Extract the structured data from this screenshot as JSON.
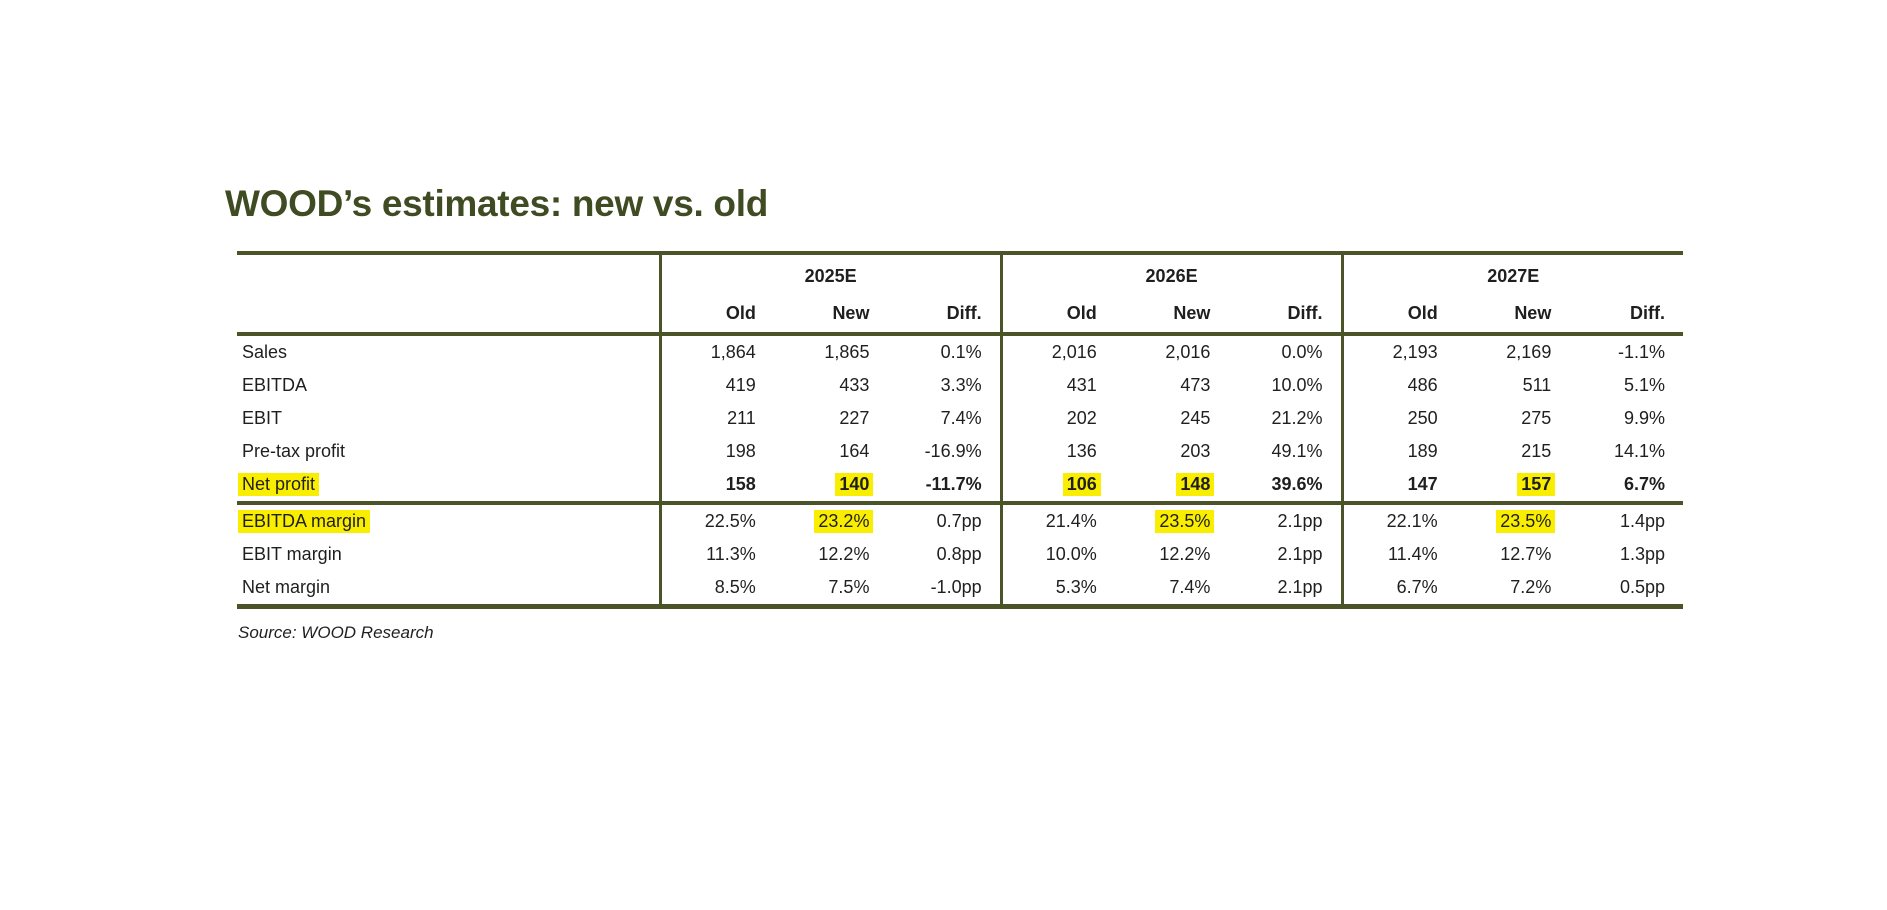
{
  "title": "WOOD’s estimates: new vs. old",
  "source_note": "Source: WOOD Research",
  "colors": {
    "title_green": "#3f4b22",
    "line_green": "#4a5428",
    "highlight_yellow": "#f9ee00",
    "text_dark": "#1f1f1f"
  },
  "table": {
    "year_headers": [
      "2025E",
      "2026E",
      "2027E"
    ],
    "sub_headers": [
      "Old",
      "New",
      "Diff."
    ],
    "rows": [
      {
        "label": {
          "v": "Sales",
          "hl": false
        },
        "bold": false,
        "cells": [
          {
            "v": "1,864",
            "hl": false
          },
          {
            "v": "1,865",
            "hl": false
          },
          {
            "v": "0.1%",
            "hl": false
          },
          {
            "v": "2,016",
            "hl": false
          },
          {
            "v": "2,016",
            "hl": false
          },
          {
            "v": "0.0%",
            "hl": false
          },
          {
            "v": "2,193",
            "hl": false
          },
          {
            "v": "2,169",
            "hl": false
          },
          {
            "v": "-1.1%",
            "hl": false
          }
        ]
      },
      {
        "label": {
          "v": "EBITDA",
          "hl": false
        },
        "bold": false,
        "cells": [
          {
            "v": "419",
            "hl": false
          },
          {
            "v": "433",
            "hl": false
          },
          {
            "v": "3.3%",
            "hl": false
          },
          {
            "v": "431",
            "hl": false
          },
          {
            "v": "473",
            "hl": false
          },
          {
            "v": "10.0%",
            "hl": false
          },
          {
            "v": "486",
            "hl": false
          },
          {
            "v": "511",
            "hl": false
          },
          {
            "v": "5.1%",
            "hl": false
          }
        ]
      },
      {
        "label": {
          "v": "EBIT",
          "hl": false
        },
        "bold": false,
        "cells": [
          {
            "v": "211",
            "hl": false
          },
          {
            "v": "227",
            "hl": false
          },
          {
            "v": "7.4%",
            "hl": false
          },
          {
            "v": "202",
            "hl": false
          },
          {
            "v": "245",
            "hl": false
          },
          {
            "v": "21.2%",
            "hl": false
          },
          {
            "v": "250",
            "hl": false
          },
          {
            "v": "275",
            "hl": false
          },
          {
            "v": "9.9%",
            "hl": false
          }
        ]
      },
      {
        "label": {
          "v": "Pre-tax profit",
          "hl": false
        },
        "bold": false,
        "cells": [
          {
            "v": "198",
            "hl": false
          },
          {
            "v": "164",
            "hl": false
          },
          {
            "v": "-16.9%",
            "hl": false
          },
          {
            "v": "136",
            "hl": false
          },
          {
            "v": "203",
            "hl": false
          },
          {
            "v": "49.1%",
            "hl": false
          },
          {
            "v": "189",
            "hl": false
          },
          {
            "v": "215",
            "hl": false
          },
          {
            "v": "14.1%",
            "hl": false
          }
        ]
      },
      {
        "label": {
          "v": "Net profit",
          "hl": true
        },
        "bold": true,
        "cells": [
          {
            "v": "158",
            "hl": false
          },
          {
            "v": "140",
            "hl": true
          },
          {
            "v": "-11.7%",
            "hl": false
          },
          {
            "v": "106",
            "hl": true
          },
          {
            "v": "148",
            "hl": true
          },
          {
            "v": "39.6%",
            "hl": false
          },
          {
            "v": "147",
            "hl": false
          },
          {
            "v": "157",
            "hl": true
          },
          {
            "v": "6.7%",
            "hl": false
          }
        ]
      },
      {
        "label": {
          "v": "EBITDA margin",
          "hl": true
        },
        "bold": false,
        "cells": [
          {
            "v": "22.5%",
            "hl": false
          },
          {
            "v": "23.2%",
            "hl": true
          },
          {
            "v": "0.7pp",
            "hl": false
          },
          {
            "v": "21.4%",
            "hl": false
          },
          {
            "v": "23.5%",
            "hl": true
          },
          {
            "v": "2.1pp",
            "hl": false
          },
          {
            "v": "22.1%",
            "hl": false
          },
          {
            "v": "23.5%",
            "hl": true
          },
          {
            "v": "1.4pp",
            "hl": false
          }
        ]
      },
      {
        "label": {
          "v": "EBIT margin",
          "hl": false
        },
        "bold": false,
        "cells": [
          {
            "v": "11.3%",
            "hl": false
          },
          {
            "v": "12.2%",
            "hl": false
          },
          {
            "v": "0.8pp",
            "hl": false
          },
          {
            "v": "10.0%",
            "hl": false
          },
          {
            "v": "12.2%",
            "hl": false
          },
          {
            "v": "2.1pp",
            "hl": false
          },
          {
            "v": "11.4%",
            "hl": false
          },
          {
            "v": "12.7%",
            "hl": false
          },
          {
            "v": "1.3pp",
            "hl": false
          }
        ]
      },
      {
        "label": {
          "v": "Net margin",
          "hl": false
        },
        "bold": false,
        "cells": [
          {
            "v": "8.5%",
            "hl": false
          },
          {
            "v": "7.5%",
            "hl": false
          },
          {
            "v": "-1.0pp",
            "hl": false
          },
          {
            "v": "5.3%",
            "hl": false
          },
          {
            "v": "7.4%",
            "hl": false
          },
          {
            "v": "2.1pp",
            "hl": false
          },
          {
            "v": "6.7%",
            "hl": false
          },
          {
            "v": "7.2%",
            "hl": false
          },
          {
            "v": "0.5pp",
            "hl": false
          }
        ]
      }
    ]
  }
}
